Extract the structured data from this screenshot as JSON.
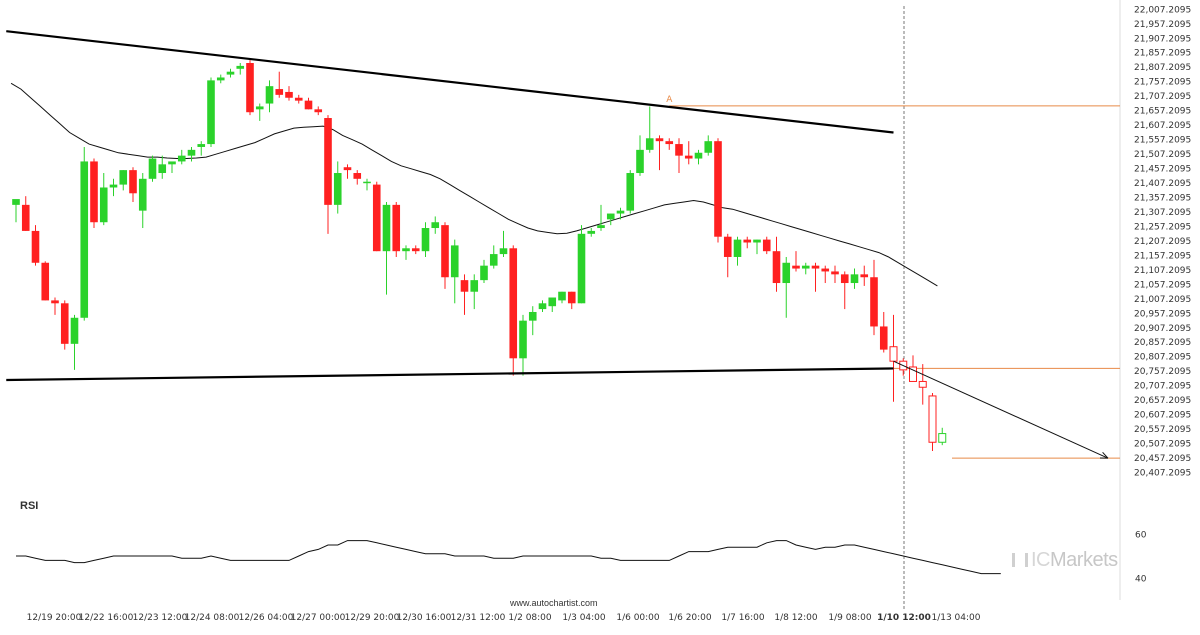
{
  "chart_data": {
    "type": "candlestick",
    "y_ticks": [
      "22,007.2095",
      "21,957.2095",
      "21,907.2095",
      "21,857.2095",
      "21,807.2095",
      "21,757.2095",
      "21,707.2095",
      "21,657.2095",
      "21,607.2095",
      "21,557.2095",
      "21,507.2095",
      "21,457.2095",
      "21,407.2095",
      "21,357.2095",
      "21,307.2095",
      "21,257.2095",
      "21,207.2095",
      "21,157.2095",
      "21,107.2095",
      "21,057.2095",
      "21,007.2095",
      "20,957.2095",
      "20,907.2095",
      "20,857.2095",
      "20,807.2095",
      "20,757.2095",
      "20,707.2095",
      "20,657.2095",
      "20,607.2095",
      "20,557.2095",
      "20,507.2095",
      "20,457.2095",
      "20,407.2095"
    ],
    "ylim": [
      20390,
      22010
    ],
    "x_ticks": [
      "12/19 20:00",
      "12/22 16:00",
      "12/23 12:00",
      "12/24 08:00",
      "12/26 04:00",
      "12/27 00:00",
      "12/29 20:00",
      "12/30 16:00",
      "12/31 12:00",
      "1/2 08:00",
      "1/3 04:00",
      "1/6 00:00",
      "1/6 20:00",
      "1/7 16:00",
      "1/8 12:00",
      "1/9 08:00",
      "1/10 12:00",
      "1/13 04:00"
    ],
    "highlight_tick": "1/10 12:00",
    "candles": [
      {
        "o": 21330,
        "h": 21345,
        "l": 21270,
        "c": 21350
      },
      {
        "o": 21330,
        "h": 21360,
        "l": 21240,
        "c": 21240
      },
      {
        "o": 21240,
        "h": 21260,
        "l": 21120,
        "c": 21130
      },
      {
        "o": 21130,
        "h": 21135,
        "l": 21000,
        "c": 21000
      },
      {
        "o": 21000,
        "h": 21010,
        "l": 20950,
        "c": 20990
      },
      {
        "o": 20990,
        "h": 21000,
        "l": 20830,
        "c": 20850
      },
      {
        "o": 20850,
        "h": 20950,
        "l": 20760,
        "c": 20940
      },
      {
        "o": 20940,
        "h": 21530,
        "l": 20930,
        "c": 21480
      },
      {
        "o": 21480,
        "h": 21490,
        "l": 21250,
        "c": 21270
      },
      {
        "o": 21270,
        "h": 21440,
        "l": 21260,
        "c": 21390
      },
      {
        "o": 21390,
        "h": 21420,
        "l": 21360,
        "c": 21400
      },
      {
        "o": 21400,
        "h": 21450,
        "l": 21380,
        "c": 21450
      },
      {
        "o": 21450,
        "h": 21460,
        "l": 21340,
        "c": 21370
      },
      {
        "o": 21310,
        "h": 21440,
        "l": 21250,
        "c": 21420
      },
      {
        "o": 21420,
        "h": 21500,
        "l": 21410,
        "c": 21490
      },
      {
        "o": 21440,
        "h": 21500,
        "l": 21420,
        "c": 21470
      },
      {
        "o": 21470,
        "h": 21480,
        "l": 21440,
        "c": 21480
      },
      {
        "o": 21480,
        "h": 21520,
        "l": 21470,
        "c": 21500
      },
      {
        "o": 21500,
        "h": 21530,
        "l": 21480,
        "c": 21520
      },
      {
        "o": 21530,
        "h": 21550,
        "l": 21500,
        "c": 21540
      },
      {
        "o": 21540,
        "h": 21770,
        "l": 21530,
        "c": 21760
      },
      {
        "o": 21760,
        "h": 21780,
        "l": 21750,
        "c": 21770
      },
      {
        "o": 21780,
        "h": 21800,
        "l": 21770,
        "c": 21790
      },
      {
        "o": 21800,
        "h": 21820,
        "l": 21780,
        "c": 21810
      },
      {
        "o": 21820,
        "h": 21830,
        "l": 21640,
        "c": 21650
      },
      {
        "o": 21660,
        "h": 21680,
        "l": 21620,
        "c": 21670
      },
      {
        "o": 21680,
        "h": 21760,
        "l": 21650,
        "c": 21740
      },
      {
        "o": 21730,
        "h": 21790,
        "l": 21700,
        "c": 21710
      },
      {
        "o": 21720,
        "h": 21740,
        "l": 21690,
        "c": 21700
      },
      {
        "o": 21700,
        "h": 21710,
        "l": 21680,
        "c": 21690
      },
      {
        "o": 21690,
        "h": 21700,
        "l": 21660,
        "c": 21660
      },
      {
        "o": 21660,
        "h": 21670,
        "l": 21640,
        "c": 21650
      },
      {
        "o": 21630,
        "h": 21640,
        "l": 21230,
        "c": 21330
      },
      {
        "o": 21330,
        "h": 21480,
        "l": 21300,
        "c": 21440
      },
      {
        "o": 21460,
        "h": 21470,
        "l": 21420,
        "c": 21450
      },
      {
        "o": 21440,
        "h": 21450,
        "l": 21400,
        "c": 21420
      },
      {
        "o": 21410,
        "h": 21420,
        "l": 21380,
        "c": 21410
      },
      {
        "o": 21400,
        "h": 21410,
        "l": 21170,
        "c": 21170
      },
      {
        "o": 21170,
        "h": 21340,
        "l": 21020,
        "c": 21330
      },
      {
        "o": 21330,
        "h": 21340,
        "l": 21150,
        "c": 21170
      },
      {
        "o": 21170,
        "h": 21190,
        "l": 21140,
        "c": 21180
      },
      {
        "o": 21180,
        "h": 21190,
        "l": 21160,
        "c": 21170
      },
      {
        "o": 21170,
        "h": 21270,
        "l": 21150,
        "c": 21250
      },
      {
        "o": 21250,
        "h": 21290,
        "l": 21230,
        "c": 21270
      },
      {
        "o": 21260,
        "h": 21270,
        "l": 21040,
        "c": 21080
      },
      {
        "o": 21080,
        "h": 21210,
        "l": 20990,
        "c": 21190
      },
      {
        "o": 21070,
        "h": 21090,
        "l": 20950,
        "c": 21030
      },
      {
        "o": 21030,
        "h": 21090,
        "l": 20970,
        "c": 21070
      },
      {
        "o": 21070,
        "h": 21140,
        "l": 21060,
        "c": 21120
      },
      {
        "o": 21120,
        "h": 21190,
        "l": 21110,
        "c": 21160
      },
      {
        "o": 21160,
        "h": 21240,
        "l": 21150,
        "c": 21180
      },
      {
        "o": 21180,
        "h": 21190,
        "l": 20740,
        "c": 20800
      },
      {
        "o": 20800,
        "h": 20950,
        "l": 20740,
        "c": 20930
      },
      {
        "o": 20930,
        "h": 20980,
        "l": 20880,
        "c": 20960
      },
      {
        "o": 20970,
        "h": 21000,
        "l": 20960,
        "c": 20990
      },
      {
        "o": 20980,
        "h": 21010,
        "l": 20960,
        "c": 21010
      },
      {
        "o": 21000,
        "h": 21030,
        "l": 20990,
        "c": 21030
      },
      {
        "o": 21030,
        "h": 21030,
        "l": 20970,
        "c": 20990
      },
      {
        "o": 20990,
        "h": 21260,
        "l": 20990,
        "c": 21230
      },
      {
        "o": 21230,
        "h": 21250,
        "l": 21220,
        "c": 21240
      },
      {
        "o": 21250,
        "h": 21330,
        "l": 21240,
        "c": 21260
      },
      {
        "o": 21280,
        "h": 21300,
        "l": 21260,
        "c": 21300
      },
      {
        "o": 21300,
        "h": 21320,
        "l": 21280,
        "c": 21310
      },
      {
        "o": 21310,
        "h": 21450,
        "l": 21300,
        "c": 21440
      },
      {
        "o": 21440,
        "h": 21570,
        "l": 21430,
        "c": 21520
      },
      {
        "o": 21520,
        "h": 21670,
        "l": 21510,
        "c": 21560
      },
      {
        "o": 21560,
        "h": 21570,
        "l": 21450,
        "c": 21550
      },
      {
        "o": 21550,
        "h": 21560,
        "l": 21520,
        "c": 21540
      },
      {
        "o": 21540,
        "h": 21560,
        "l": 21440,
        "c": 21500
      },
      {
        "o": 21500,
        "h": 21550,
        "l": 21470,
        "c": 21490
      },
      {
        "o": 21490,
        "h": 21520,
        "l": 21470,
        "c": 21510
      },
      {
        "o": 21510,
        "h": 21570,
        "l": 21500,
        "c": 21550
      },
      {
        "o": 21550,
        "h": 21560,
        "l": 21200,
        "c": 21220
      },
      {
        "o": 21220,
        "h": 21230,
        "l": 21080,
        "c": 21150
      },
      {
        "o": 21150,
        "h": 21220,
        "l": 21120,
        "c": 21210
      },
      {
        "o": 21210,
        "h": 21220,
        "l": 21180,
        "c": 21200
      },
      {
        "o": 21200,
        "h": 21210,
        "l": 21160,
        "c": 21210
      },
      {
        "o": 21210,
        "h": 21220,
        "l": 21160,
        "c": 21170
      },
      {
        "o": 21170,
        "h": 21220,
        "l": 21030,
        "c": 21060
      },
      {
        "o": 21060,
        "h": 21150,
        "l": 20940,
        "c": 21130
      },
      {
        "o": 21120,
        "h": 21170,
        "l": 21100,
        "c": 21110
      },
      {
        "o": 21110,
        "h": 21130,
        "l": 21090,
        "c": 21120
      },
      {
        "o": 21120,
        "h": 21130,
        "l": 21030,
        "c": 21110
      },
      {
        "o": 21110,
        "h": 21120,
        "l": 21060,
        "c": 21100
      },
      {
        "o": 21100,
        "h": 21120,
        "l": 21060,
        "c": 21090
      },
      {
        "o": 21090,
        "h": 21100,
        "l": 20970,
        "c": 21060
      },
      {
        "o": 21060,
        "h": 21110,
        "l": 21040,
        "c": 21090
      },
      {
        "o": 21090,
        "h": 21120,
        "l": 21050,
        "c": 21080
      },
      {
        "o": 21080,
        "h": 21140,
        "l": 20880,
        "c": 20910
      },
      {
        "o": 20910,
        "h": 20960,
        "l": 20820,
        "c": 20830
      },
      {
        "o": 20840,
        "h": 20950,
        "l": 20650,
        "c": 20790,
        "hollow": true
      },
      {
        "o": 20790,
        "h": 20800,
        "l": 20740,
        "c": 20760,
        "hollow": true
      },
      {
        "o": 20770,
        "h": 20810,
        "l": 20730,
        "c": 20720,
        "hollow": true
      },
      {
        "o": 20720,
        "h": 20780,
        "l": 20640,
        "c": 20700,
        "hollow": true
      },
      {
        "o": 20670,
        "h": 20680,
        "l": 20480,
        "c": 20510,
        "hollow": true
      },
      {
        "o": 20510,
        "h": 20560,
        "l": 20500,
        "c": 20540,
        "hollow": true
      }
    ],
    "moving_average": [
      21750,
      21730,
      21700,
      21670,
      21640,
      21610,
      21580,
      21560,
      21540,
      21530,
      21520,
      21510,
      21505,
      21500,
      21495,
      21495,
      21492,
      21490,
      21490,
      21492,
      21495,
      21505,
      21515,
      21525,
      21535,
      21545,
      21560,
      21575,
      21585,
      21595,
      21598,
      21600,
      21602,
      21590,
      21570,
      21555,
      21540,
      21520,
      21500,
      21480,
      21465,
      21455,
      21445,
      21435,
      21420,
      21400,
      21380,
      21360,
      21340,
      21320,
      21300,
      21280,
      21265,
      21250,
      21240,
      21235,
      21230,
      21232,
      21240,
      21250,
      21260,
      21270,
      21280,
      21290,
      21300,
      21310,
      21320,
      21330,
      21335,
      21340,
      21345,
      21340,
      21330,
      21320,
      21315,
      21305,
      21295,
      21285,
      21275,
      21265,
      21255,
      21245,
      21235,
      21225,
      21215,
      21205,
      21195,
      21185,
      21175,
      21165,
      21150,
      21130,
      21110,
      21090,
      21070,
      21050
    ],
    "trend_lines": [
      {
        "name": "resistance",
        "from": {
          "i": -1,
          "y": 21930
        },
        "to": {
          "i": 90,
          "y": 21580
        }
      },
      {
        "name": "support",
        "from": {
          "i": -1,
          "y": 20725
        },
        "to": {
          "i": 90,
          "y": 20765
        }
      }
    ],
    "levels": [
      {
        "name": "breakout-level",
        "y": 21672,
        "from_i": 67
      },
      {
        "name": "upper-level",
        "y": 20765,
        "from_i": 90
      },
      {
        "name": "target-level",
        "y": 20455,
        "from_i": 96
      }
    ],
    "projection": {
      "from": {
        "i": 90,
        "y": 20790
      },
      "to": {
        "i": 112,
        "y": 20455
      }
    },
    "annotation": {
      "text": "A",
      "i": 67,
      "y": 21685
    },
    "rsi": {
      "label": "RSI",
      "ticks": [
        "60",
        "40"
      ],
      "ylim": [
        35,
        65
      ],
      "values": [
        50,
        50,
        49,
        48,
        48,
        48,
        47,
        47,
        48,
        49,
        50,
        50,
        50,
        50,
        50,
        50,
        50,
        49,
        49,
        49,
        50,
        49,
        48,
        48,
        48,
        48,
        48,
        48,
        48,
        50,
        52,
        53,
        55,
        55,
        57,
        57,
        57,
        56,
        55,
        54,
        53,
        52,
        51,
        51,
        51,
        50,
        50,
        50,
        50,
        49,
        49,
        49,
        50,
        50,
        50,
        50,
        50,
        50,
        50,
        50,
        49,
        49,
        48,
        48,
        48,
        48,
        48,
        48,
        50,
        52,
        52,
        52,
        53,
        54,
        54,
        54,
        54,
        56,
        57,
        57,
        55,
        54,
        53,
        54,
        54,
        55,
        55,
        54,
        53,
        52,
        51,
        50,
        49,
        48,
        47,
        46,
        45,
        44,
        43,
        42,
        42,
        42
      ],
      "mark": 40.5
    }
  },
  "watermark": "www.autochartist.com",
  "brand": {
    "ic": "IC",
    "name": "Markets"
  },
  "colors": {
    "bull": "#2bd22b",
    "bear": "#ff2020",
    "level": "#e88a47",
    "line": "#000000",
    "text": "#333333"
  }
}
